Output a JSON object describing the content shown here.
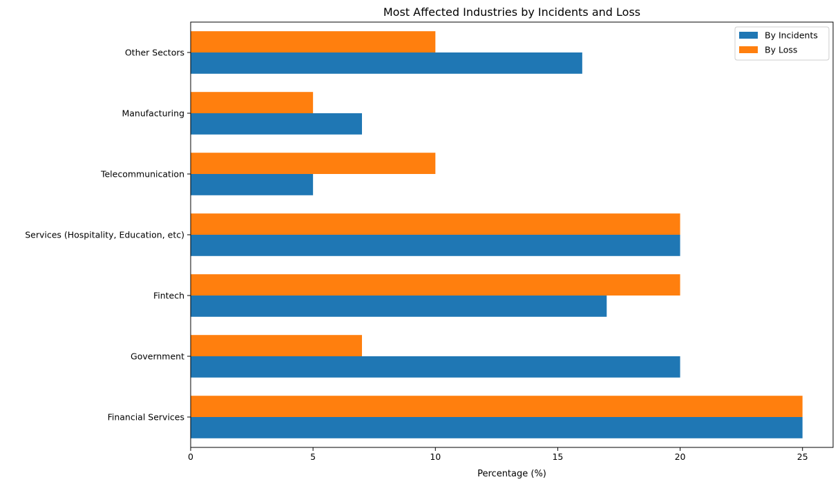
{
  "chart_data": {
    "type": "bar",
    "orientation": "horizontal",
    "title": "Most Affected Industries by Incidents and Loss",
    "xlabel": "Percentage (%)",
    "ylabel": "",
    "xlim": [
      0,
      26.25
    ],
    "xticks": [
      0,
      5,
      10,
      15,
      20,
      25
    ],
    "grid": false,
    "legend_position": "top-right",
    "categories": [
      "Financial Services",
      "Government",
      "Fintech",
      "Services (Hospitality, Education, etc)",
      "Telecommunication",
      "Manufacturing",
      "Other Sectors"
    ],
    "series": [
      {
        "name": "By Incidents",
        "color": "#1f77b4",
        "values": [
          25,
          20,
          17,
          20,
          5,
          7,
          16
        ]
      },
      {
        "name": "By Loss",
        "color": "#ff7f0e",
        "values": [
          25,
          7,
          20,
          20,
          10,
          5,
          10
        ]
      }
    ]
  }
}
